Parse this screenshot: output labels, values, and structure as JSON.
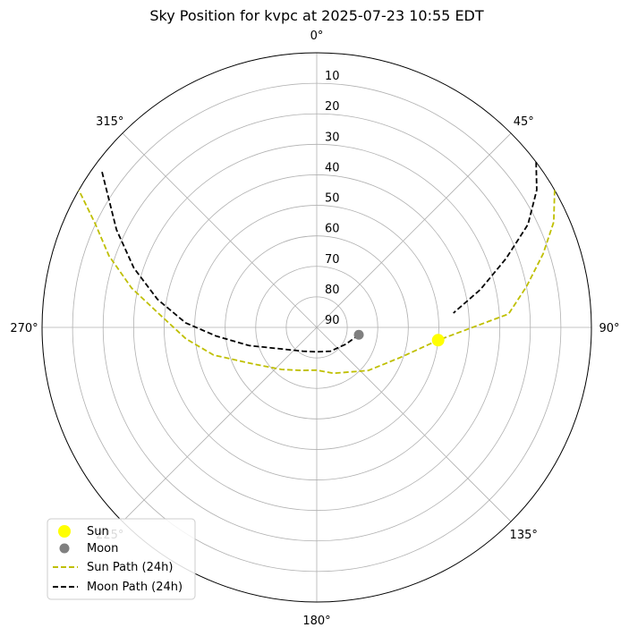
{
  "chart_data": {
    "type": "polar-scatter",
    "title": "Sky Position for kvpc at 2025-07-23 10:55 EDT",
    "radial_axis": {
      "label_orientation": "altitude at center = 90, horizon = 0",
      "range": [
        90,
        0
      ],
      "ticks": [
        "90",
        "80",
        "70",
        "60",
        "50",
        "40",
        "30",
        "20",
        "10"
      ]
    },
    "angular_axis": {
      "zero_location": "top",
      "direction": "clockwise",
      "ticks": [
        "0°",
        "45°",
        "90°",
        "135°",
        "180°",
        "225°",
        "270°",
        "315°"
      ]
    },
    "grid": true,
    "legend": {
      "placement": "lower-left",
      "entries": [
        "Sun",
        "Moon",
        "Sun Path (24h)",
        "Moon Path (24h)"
      ]
    },
    "colors": {
      "sun": "#ffff00",
      "moon": "#808080",
      "sun_path": "#bfbf00",
      "moon_path": "#000000",
      "grid": "#b0b0b0"
    },
    "points": [
      {
        "name": "Sun",
        "azimuth": 96,
        "altitude": 50
      },
      {
        "name": "Moon",
        "azimuth": 100,
        "altitude": 76
      }
    ],
    "series": [
      {
        "name": "Sun Path (24h)",
        "style": "dashed",
        "segments": [
          [
            [
              60,
              0
            ],
            [
              66,
              5
            ],
            [
              72,
              12
            ],
            [
              79,
              20
            ],
            [
              86,
              27
            ],
            [
              96,
              50
            ],
            [
              110,
              61
            ],
            [
              130,
              68
            ],
            [
              160,
              74
            ],
            [
              180,
              76
            ],
            [
              200,
              75
            ],
            [
              220,
              72
            ],
            [
              240,
              66
            ],
            [
              255,
              55
            ],
            [
              265,
              47
            ],
            [
              275,
              38
            ],
            [
              282,
              28
            ],
            [
              289,
              18
            ],
            [
              295,
              10
            ],
            [
              300,
              0
            ]
          ]
        ]
      },
      {
        "name": "Moon Path (24h)",
        "style": "dashed",
        "segments": [
          [
            [
              53,
              0
            ],
            [
              58,
              5
            ],
            [
              64,
              13
            ],
            [
              70,
              24
            ],
            [
              77,
              35
            ],
            [
              84,
              45
            ]
          ],
          [
            [
              100,
              76
            ],
            [
              120,
              79
            ],
            [
              150,
              81
            ],
            [
              180,
              82
            ],
            [
              210,
              81
            ],
            [
              240,
              76
            ],
            [
              255,
              67
            ],
            [
              265,
              57
            ],
            [
              272,
              47
            ],
            [
              280,
              37
            ],
            [
              288,
              27
            ],
            [
              296,
              17
            ],
            [
              303,
              8
            ],
            [
              306,
              3
            ]
          ]
        ]
      }
    ]
  }
}
